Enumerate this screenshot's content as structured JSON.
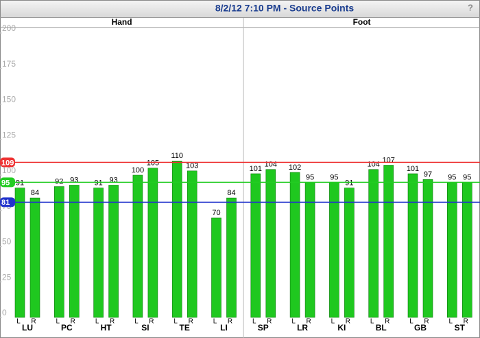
{
  "chart_data": {
    "type": "bar",
    "title": "8/2/12 7:10 PM - Source Points",
    "help": "?",
    "sections": [
      "Hand",
      "Foot"
    ],
    "categories": [
      "LU",
      "PC",
      "HT",
      "SI",
      "TE",
      "LI",
      "SP",
      "LR",
      "KI",
      "BL",
      "GB",
      "ST"
    ],
    "series": [
      {
        "name": "L",
        "color": "#1fc81f",
        "values": [
          91,
          92,
          91,
          100,
          110,
          70,
          101,
          102,
          95,
          104,
          101,
          95
        ]
      },
      {
        "name": "R",
        "color": "#1fc81f",
        "values": [
          84,
          93,
          93,
          105,
          103,
          84,
          104,
          95,
          91,
          107,
          97,
          95
        ]
      }
    ],
    "reference_lines": [
      {
        "value": 109,
        "color": "#ee3333"
      },
      {
        "value": 95,
        "color": "#22cc22"
      },
      {
        "value": 81,
        "color": "#2233cc"
      }
    ],
    "ylim": [
      0,
      200
    ],
    "yticks": [
      0,
      25,
      50,
      75,
      100,
      125,
      150,
      175,
      200
    ]
  }
}
